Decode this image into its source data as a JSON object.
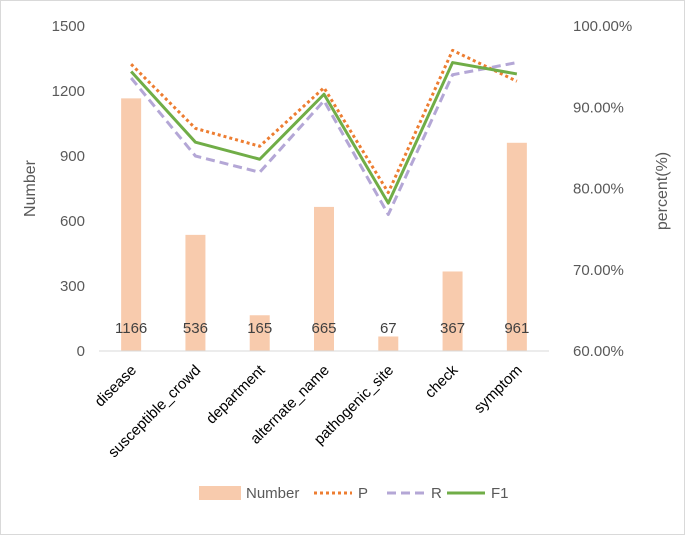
{
  "chart_data": {
    "type": "bar",
    "categories": [
      "disease",
      "susceptible_crowd",
      "department",
      "alternate_name",
      "pathogenic_site",
      "check",
      "symptom"
    ],
    "ylabel": "Number",
    "y2label": "percent(%)",
    "ylim": [
      0,
      1500
    ],
    "yticks": [
      "0",
      "300",
      "600",
      "900",
      "1200",
      "1500"
    ],
    "y2lim": [
      60,
      100
    ],
    "y2ticks": [
      "60.00%",
      "70.00%",
      "80.00%",
      "90.00%",
      "100.00%"
    ],
    "grid": false,
    "legend": "bottom",
    "colors": {
      "Number": "#f8cbad",
      "P": "#ed7d31",
      "R": "#b4a7d6",
      "F1": "#70ad47"
    },
    "series": [
      {
        "name": "Number",
        "type": "bar",
        "axis": "left",
        "values": [
          1166,
          536,
          165,
          665,
          67,
          367,
          961
        ],
        "labels": [
          "1166",
          "536",
          "165",
          "665",
          "67",
          "367",
          "961"
        ]
      },
      {
        "name": "P",
        "type": "line",
        "axis": "right",
        "style": "dotted",
        "values": [
          95.3,
          87.4,
          85.2,
          92.4,
          79.5,
          97.0,
          93.2
        ]
      },
      {
        "name": "R",
        "type": "line",
        "axis": "right",
        "style": "dashed",
        "values": [
          93.6,
          84.0,
          82.0,
          90.8,
          76.8,
          94.0,
          95.5
        ]
      },
      {
        "name": "F1",
        "type": "line",
        "axis": "right",
        "style": "solid",
        "values": [
          94.4,
          85.7,
          83.6,
          91.6,
          78.2,
          95.5,
          94.1
        ]
      }
    ]
  }
}
